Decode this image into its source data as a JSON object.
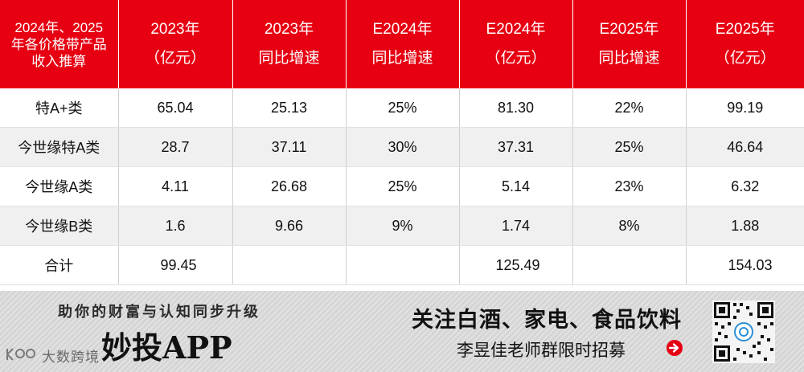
{
  "table": {
    "headers": [
      [
        "2024年、2025",
        "年各价格带产品",
        "收入推算"
      ],
      [
        "2023年",
        "（亿元）"
      ],
      [
        "2023年",
        "同比增速"
      ],
      [
        "E2024年",
        "同比增速"
      ],
      [
        "E2024年",
        "（亿元）"
      ],
      [
        "E2025年",
        "同比增速"
      ],
      [
        "E2025年",
        "（亿元）"
      ]
    ],
    "rows": [
      [
        "特A+类",
        "65.04",
        "25.13",
        "25%",
        "81.30",
        "22%",
        "99.19"
      ],
      [
        "今世缘特A类",
        "28.7",
        "37.11",
        "30%",
        "37.31",
        "25%",
        "46.64"
      ],
      [
        "今世缘A类",
        "4.11",
        "26.68",
        "25%",
        "5.14",
        "23%",
        "6.32"
      ],
      [
        "今世缘B类",
        "1.6",
        "9.66",
        "9%",
        "1.74",
        "8%",
        "1.88"
      ]
    ],
    "total": [
      "合计",
      "99.45",
      "",
      "",
      "125.49",
      "",
      "154.03"
    ]
  },
  "banner": {
    "slogan": "助你的财富与认知同步升级",
    "brand": "妙投APP",
    "logo_text": "大数跨境",
    "follow": "关注白酒、家电、食品饮料",
    "recruit": "李昱佳老师群限时招募"
  },
  "colors": {
    "header_bg": "#e60012",
    "banner_bg": "#dcdcdc",
    "arrow": "#e60012"
  },
  "icons": [
    "logo-icon",
    "arrow-right-circle-icon",
    "qr-code-icon"
  ]
}
